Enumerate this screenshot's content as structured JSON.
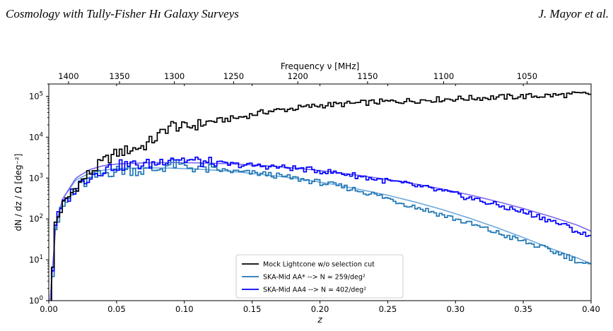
{
  "header": {
    "left": "Cosmology with Tully-Fisher Hɪ Galaxy Surveys",
    "right": "J. Mayor et al."
  },
  "chart_data": {
    "type": "line",
    "xlabel": "z",
    "ylabel": "dN / dz / Ω [deg⁻²]",
    "top_axis_label": "Frequency ν [MHz]",
    "xlim": [
      0.0,
      0.4
    ],
    "ylim": [
      1,
      200000
    ],
    "yscale": "log",
    "grid": false,
    "legend_position": "lower-center",
    "x_ticks": [
      "0.00",
      "0.05",
      "0.10",
      "0.15",
      "0.20",
      "0.25",
      "0.30",
      "0.35",
      "0.40"
    ],
    "y_ticks": [
      {
        "base": "10",
        "exp": "0",
        "value": 1
      },
      {
        "base": "10",
        "exp": "1",
        "value": 10
      },
      {
        "base": "10",
        "exp": "2",
        "value": 100
      },
      {
        "base": "10",
        "exp": "3",
        "value": 1000
      },
      {
        "base": "10",
        "exp": "4",
        "value": 10000
      },
      {
        "base": "10",
        "exp": "5",
        "value": 100000
      }
    ],
    "top_ticks": [
      {
        "label": "1400",
        "mhz": 1400
      },
      {
        "label": "1350",
        "mhz": 1350
      },
      {
        "label": "1300",
        "mhz": 1300
      },
      {
        "label": "1250",
        "mhz": 1250
      },
      {
        "label": "1200",
        "mhz": 1200
      },
      {
        "label": "1150",
        "mhz": 1150
      },
      {
        "label": "1100",
        "mhz": 1100
      },
      {
        "label": "1050",
        "mhz": 1050
      }
    ],
    "series": [
      {
        "name": "Mock Lightcone w/o selection cut",
        "color": "#000000",
        "style": "step",
        "knots": [
          [
            0.0,
            0.5
          ],
          [
            0.002,
            1.5
          ],
          [
            0.005,
            80
          ],
          [
            0.01,
            200
          ],
          [
            0.02,
            600
          ],
          [
            0.03,
            1300
          ],
          [
            0.04,
            2500
          ],
          [
            0.05,
            4000
          ],
          [
            0.06,
            5000
          ],
          [
            0.07,
            6000
          ],
          [
            0.08,
            10000
          ],
          [
            0.09,
            20000
          ],
          [
            0.1,
            17000
          ],
          [
            0.12,
            24000
          ],
          [
            0.14,
            30000
          ],
          [
            0.16,
            42000
          ],
          [
            0.18,
            50000
          ],
          [
            0.2,
            60000
          ],
          [
            0.22,
            65000
          ],
          [
            0.24,
            72000
          ],
          [
            0.26,
            76000
          ],
          [
            0.28,
            82000
          ],
          [
            0.3,
            87000
          ],
          [
            0.32,
            92000
          ],
          [
            0.34,
            97000
          ],
          [
            0.36,
            102000
          ],
          [
            0.38,
            108000
          ],
          [
            0.4,
            116000
          ]
        ]
      },
      {
        "name": "SKA-Mid AA*  -->  N ≃ 259/deg²",
        "color": "#1f77b4",
        "style": "step",
        "knots": [
          [
            0.0,
            0.5
          ],
          [
            0.002,
            1.5
          ],
          [
            0.005,
            60
          ],
          [
            0.01,
            180
          ],
          [
            0.02,
            500
          ],
          [
            0.03,
            900
          ],
          [
            0.04,
            1300
          ],
          [
            0.05,
            1500
          ],
          [
            0.06,
            1600
          ],
          [
            0.07,
            1500
          ],
          [
            0.08,
            1600
          ],
          [
            0.09,
            2200
          ],
          [
            0.1,
            1900
          ],
          [
            0.12,
            1650
          ],
          [
            0.14,
            1400
          ],
          [
            0.16,
            1250
          ],
          [
            0.18,
            1000
          ],
          [
            0.2,
            780
          ],
          [
            0.22,
            580
          ],
          [
            0.24,
            400
          ],
          [
            0.26,
            250
          ],
          [
            0.28,
            160
          ],
          [
            0.3,
            100
          ],
          [
            0.32,
            60
          ],
          [
            0.34,
            36
          ],
          [
            0.36,
            22
          ],
          [
            0.38,
            13
          ],
          [
            0.4,
            7
          ]
        ]
      },
      {
        "name": "SKA-Mid AA4  -->  N ≃ 402/deg²",
        "color": "#0000ff",
        "style": "step",
        "knots": [
          [
            0.0,
            0.5
          ],
          [
            0.002,
            1.5
          ],
          [
            0.005,
            80
          ],
          [
            0.01,
            200
          ],
          [
            0.02,
            600
          ],
          [
            0.03,
            1100
          ],
          [
            0.04,
            1600
          ],
          [
            0.05,
            2000
          ],
          [
            0.06,
            2100
          ],
          [
            0.07,
            2100
          ],
          [
            0.08,
            2300
          ],
          [
            0.09,
            3300
          ],
          [
            0.1,
            2800
          ],
          [
            0.12,
            2300
          ],
          [
            0.14,
            2100
          ],
          [
            0.16,
            1950
          ],
          [
            0.18,
            1750
          ],
          [
            0.2,
            1500
          ],
          [
            0.22,
            1250
          ],
          [
            0.24,
            950
          ],
          [
            0.26,
            750
          ],
          [
            0.28,
            560
          ],
          [
            0.3,
            400
          ],
          [
            0.32,
            270
          ],
          [
            0.34,
            180
          ],
          [
            0.36,
            120
          ],
          [
            0.38,
            70
          ],
          [
            0.4,
            35
          ]
        ]
      },
      {
        "color": "#6fa8dc",
        "style": "smooth",
        "knots": [
          [
            0.001,
            1
          ],
          [
            0.005,
            60
          ],
          [
            0.01,
            300
          ],
          [
            0.02,
            900
          ],
          [
            0.03,
            1300
          ],
          [
            0.04,
            1550
          ],
          [
            0.05,
            1700
          ],
          [
            0.07,
            1780
          ],
          [
            0.09,
            1750
          ],
          [
            0.11,
            1650
          ],
          [
            0.13,
            1500
          ],
          [
            0.15,
            1300
          ],
          [
            0.17,
            1100
          ],
          [
            0.19,
            900
          ],
          [
            0.21,
            700
          ],
          [
            0.23,
            520
          ],
          [
            0.25,
            380
          ],
          [
            0.27,
            260
          ],
          [
            0.29,
            170
          ],
          [
            0.31,
            105
          ],
          [
            0.33,
            62
          ],
          [
            0.35,
            35
          ],
          [
            0.37,
            19
          ],
          [
            0.39,
            11
          ],
          [
            0.4,
            8
          ]
        ]
      },
      {
        "color": "#7b68ee",
        "style": "smooth",
        "knots": [
          [
            0.001,
            1
          ],
          [
            0.005,
            60
          ],
          [
            0.01,
            300
          ],
          [
            0.02,
            1000
          ],
          [
            0.03,
            1600
          ],
          [
            0.04,
            2000
          ],
          [
            0.05,
            2200
          ],
          [
            0.07,
            2350
          ],
          [
            0.09,
            2400
          ],
          [
            0.11,
            2350
          ],
          [
            0.13,
            2250
          ],
          [
            0.15,
            2100
          ],
          [
            0.17,
            1900
          ],
          [
            0.19,
            1650
          ],
          [
            0.21,
            1400
          ],
          [
            0.23,
            1150
          ],
          [
            0.25,
            920
          ],
          [
            0.27,
            720
          ],
          [
            0.29,
            540
          ],
          [
            0.31,
            390
          ],
          [
            0.33,
            270
          ],
          [
            0.35,
            180
          ],
          [
            0.37,
            115
          ],
          [
            0.39,
            70
          ],
          [
            0.4,
            50
          ]
        ]
      }
    ]
  }
}
